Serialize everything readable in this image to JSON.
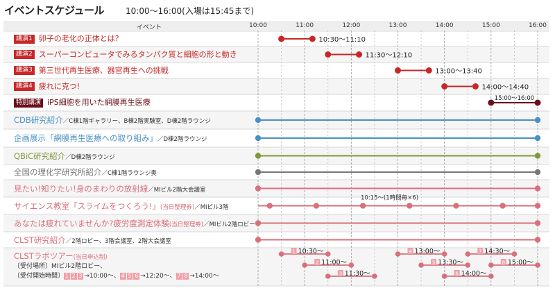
{
  "title": "イベントスケジュール",
  "subtitle": "10:00〜16:00(入場は15:45まで)",
  "header": {
    "event_col": "イベント",
    "times": [
      "10:00",
      "11:00",
      "12:00",
      "13:00",
      "14:00",
      "15:00",
      "16:00"
    ]
  },
  "colors": {
    "red": "#c62828",
    "blue": "#4a90c2",
    "green": "#7a9b3a",
    "gray": "#777777",
    "pink": "#d9707a",
    "maroon": "#6b0f1a"
  },
  "lectures": [
    {
      "badge": "講演1",
      "title": "卵子の老化の正体とは?",
      "time": "10:30〜11:10",
      "start": 10.5,
      "end": 11.1667
    },
    {
      "badge": "講演2",
      "title": "スーパーコンピュータでみるタンパク質と細胞の形と動き",
      "time": "11:30〜12:10",
      "start": 11.5,
      "end": 12.1667
    },
    {
      "badge": "講演3",
      "title": "第三世代再生医療、器官再生への挑戦",
      "time": "13:00〜13:40",
      "start": 13.0,
      "end": 13.6667
    },
    {
      "badge": "講演4",
      "title": "疲れに克つ!",
      "time": "14:00〜14:40",
      "start": 14.0,
      "end": 14.6667
    },
    {
      "badge": "特別講演",
      "title": "iPS細胞を用いた網膜再生医療",
      "time": "15:00〜16:00",
      "start": 15.0,
      "end": 16.0
    }
  ],
  "exhibits": [
    {
      "name": "CDB研究紹介",
      "loc": "／C棟1階ギャラリー、B棟2階実験室、D棟2階ラウンジ",
      "color": "blue"
    },
    {
      "name": "企画展示「網膜再生医療への取り組み」",
      "loc": "／D棟2階ラウンジ",
      "color": "blue"
    },
    {
      "name": "QBiC研究紹介",
      "loc": "／D棟2階ラウンジ",
      "color": "green"
    },
    {
      "name": "全国の理化学研究所紹介",
      "loc": "／C棟1階ラウンジ奥",
      "color": "gray"
    },
    {
      "name": "見たい!知りたい!身のまわりの放射線",
      "loc": "／MIビル2階大会議室",
      "color": "pink"
    },
    {
      "name": "サイエンス教室「スライムをつくろう!」",
      "note": "(当日整理券)",
      "loc": "／MIビル3階",
      "color": "pink",
      "annot": "10:15〜(1時間毎×6)"
    },
    {
      "name": "あなたは疲れていませんか?疲労度測定体験",
      "note": "(当日整理券)",
      "loc": "／MIビル2階ロビー",
      "color": "pink"
    },
    {
      "name": "CLST研究紹介",
      "loc": "／2階ロビー、3階会議室、2階大会議室",
      "color": "pink"
    }
  ],
  "tour": {
    "name": "CLSTラボツアー",
    "note": "(当日申込制)",
    "line1": "〔受付場所〕MIビル2階ロビー、",
    "line2": "〔受付開始時間〕",
    "line2_items": [
      "1 2 3",
      "→10:00〜、",
      "4 5 6",
      "→12:20〜、",
      "7 8",
      "→14:00〜"
    ],
    "slots": [
      {
        "n": "1",
        "label": "10:30〜",
        "start": 10.5
      },
      {
        "n": "2",
        "label": "11:00〜",
        "start": 11.0
      },
      {
        "n": "3",
        "label": "11:30〜",
        "start": 11.5
      },
      {
        "n": "4",
        "label": "13:00〜",
        "start": 13.0
      },
      {
        "n": "5",
        "label": "13:30〜",
        "start": 13.5
      },
      {
        "n": "6",
        "label": "14:00〜",
        "start": 14.0
      },
      {
        "n": "7",
        "label": "14:30〜",
        "start": 14.5
      },
      {
        "n": "8",
        "label": "15:00〜",
        "start": 15.0
      }
    ]
  }
}
